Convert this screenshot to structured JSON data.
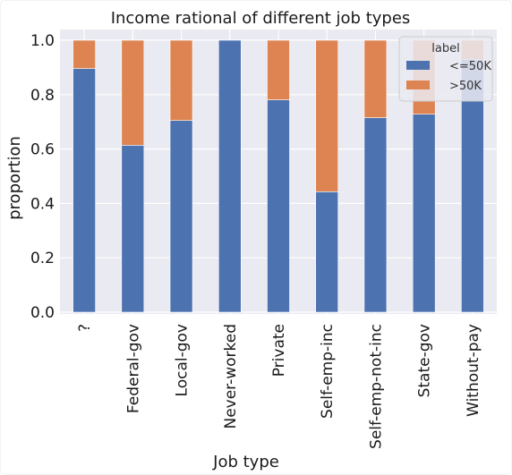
{
  "chart_data": {
    "type": "bar",
    "stacked": true,
    "title": "Income rational of different job types",
    "xlabel": "Job type",
    "ylabel": "proportion",
    "ylim": [
      0,
      1.0
    ],
    "yticks": [
      "0.0",
      "0.2",
      "0.4",
      "0.6",
      "0.8",
      "1.0"
    ],
    "grid": true,
    "categories": [
      "?",
      "Federal-gov",
      "Local-gov",
      "Never-worked",
      "Private",
      "Self-emp-inc",
      "Self-emp-not-inc",
      "State-gov",
      "Without-pay"
    ],
    "series": [
      {
        "name": "<=50K",
        "color": "#4c72b0",
        "values": [
          0.896,
          0.614,
          0.705,
          1.0,
          0.781,
          0.443,
          0.715,
          0.728,
          0.929
        ]
      },
      {
        "name": ">50K",
        "color": "#dd8452",
        "values": [
          0.104,
          0.386,
          0.295,
          0.0,
          0.219,
          0.557,
          0.285,
          0.272,
          0.071
        ]
      }
    ],
    "legend": {
      "title": "label",
      "placement": "top-right"
    },
    "colors": {
      "plot_background": "#eaeaf2",
      "grid": "#ffffff"
    }
  }
}
